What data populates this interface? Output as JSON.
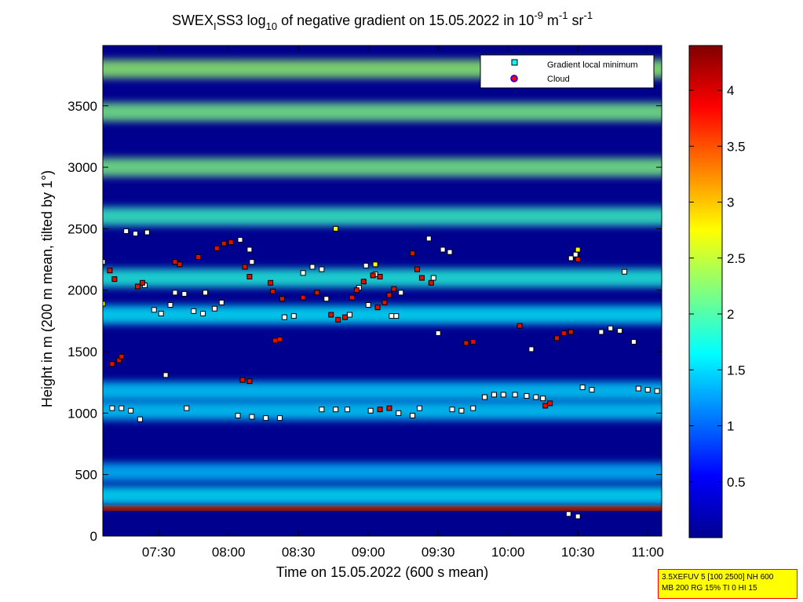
{
  "chart_data": [
    {
      "type": "heatmap",
      "title": {
        "part1": "SWEX",
        "sub1": "I",
        "part2": "SS3 log",
        "sub2": "10",
        "part3": " of negative gradient on 15.05.2022 in 10",
        "sup1": "-9",
        "part4": " m",
        "sup2": "-1",
        "part5": " sr",
        "sup3": "-1"
      },
      "xlabel": "Time on 15.05.2022 (600 s mean)",
      "ylabel": "Height in m (200 m mean, tilted by 1°)",
      "xlim_minutes": [
        426,
        666
      ],
      "xticks": [
        {
          "label": "07:30",
          "minutes": 450
        },
        {
          "label": "08:00",
          "minutes": 480
        },
        {
          "label": "08:30",
          "minutes": 510
        },
        {
          "label": "09:00",
          "minutes": 540
        },
        {
          "label": "09:30",
          "minutes": 570
        },
        {
          "label": "10:00",
          "minutes": 600
        },
        {
          "label": "10:30",
          "minutes": 630
        },
        {
          "label": "11:00",
          "minutes": 660
        }
      ],
      "ylim": [
        0,
        3990
      ],
      "yticks": [
        0,
        500,
        1000,
        1500,
        2000,
        2500,
        3000,
        3500
      ],
      "ytick_labels": [
        "0",
        "500",
        "1000",
        "1500",
        "2000",
        "2500",
        "3000",
        "3500"
      ],
      "colorbar": {
        "range": [
          0,
          4.4
        ],
        "ticks": [
          0.5,
          1,
          1.5,
          2,
          2.5,
          3,
          3.5,
          4
        ],
        "tick_labels": [
          "0.5",
          "1",
          "1.5",
          "2",
          "2.5",
          "3",
          "3.5",
          "4"
        ],
        "colormap": "jet"
      },
      "layers": [
        {
          "height": 230,
          "value": 4.3,
          "kind": "surface line"
        },
        {
          "height": 330,
          "value": 1.6
        },
        {
          "height": 520,
          "value": 1.4
        },
        {
          "height": 1020,
          "value": 1.5
        },
        {
          "height": 1180,
          "value": 1.5
        },
        {
          "height": 1800,
          "value": 1.6
        },
        {
          "height": 2100,
          "value": 1.8
        },
        {
          "height": 2600,
          "value": 1.9
        },
        {
          "height": 3000,
          "value": 2.2
        },
        {
          "height": 3450,
          "value": 2.2
        },
        {
          "height": 3800,
          "value": 2.3
        }
      ],
      "legend": {
        "position": "top-right",
        "entries": [
          {
            "label": "Gradient local minimum",
            "color": "#00ffff"
          },
          {
            "label": "Cloud",
            "color": "#ff0000"
          }
        ]
      },
      "gradient_minima": [
        {
          "t": 426,
          "h": 2230
        },
        {
          "t": 430,
          "h": 1040
        },
        {
          "t": 434,
          "h": 1040
        },
        {
          "t": 438,
          "h": 1020
        },
        {
          "t": 442,
          "h": 950
        },
        {
          "t": 436,
          "h": 2480
        },
        {
          "t": 440,
          "h": 2460
        },
        {
          "t": 445,
          "h": 2470
        },
        {
          "t": 444,
          "h": 2040
        },
        {
          "t": 448,
          "h": 1840
        },
        {
          "t": 451,
          "h": 1810
        },
        {
          "t": 455,
          "h": 1880
        },
        {
          "t": 457,
          "h": 1980
        },
        {
          "t": 461,
          "h": 1970
        },
        {
          "t": 453,
          "h": 1310
        },
        {
          "t": 462,
          "h": 1040
        },
        {
          "t": 465,
          "h": 1830
        },
        {
          "t": 469,
          "h": 1810
        },
        {
          "t": 474,
          "h": 1850
        },
        {
          "t": 477,
          "h": 1900
        },
        {
          "t": 470,
          "h": 1980
        },
        {
          "t": 485,
          "h": 2410
        },
        {
          "t": 489,
          "h": 2330
        },
        {
          "t": 490,
          "h": 2230
        },
        {
          "t": 484,
          "h": 980
        },
        {
          "t": 490,
          "h": 970
        },
        {
          "t": 496,
          "h": 960
        },
        {
          "t": 502,
          "h": 960
        },
        {
          "t": 504,
          "h": 1780
        },
        {
          "t": 508,
          "h": 1790
        },
        {
          "t": 512,
          "h": 2140
        },
        {
          "t": 516,
          "h": 2190
        },
        {
          "t": 520,
          "h": 2170
        },
        {
          "t": 522,
          "h": 1930
        },
        {
          "t": 520,
          "h": 1030
        },
        {
          "t": 526,
          "h": 1030
        },
        {
          "t": 531,
          "h": 1030
        },
        {
          "t": 532,
          "h": 1800
        },
        {
          "t": 536,
          "h": 2020
        },
        {
          "t": 539,
          "h": 2200
        },
        {
          "t": 543,
          "h": 2130
        },
        {
          "t": 540,
          "h": 1880
        },
        {
          "t": 541,
          "h": 1020
        },
        {
          "t": 550,
          "h": 1790
        },
        {
          "t": 552,
          "h": 1790
        },
        {
          "t": 554,
          "h": 1980
        },
        {
          "t": 553,
          "h": 1000
        },
        {
          "t": 559,
          "h": 980
        },
        {
          "t": 562,
          "h": 1040
        },
        {
          "t": 566,
          "h": 2420
        },
        {
          "t": 568,
          "h": 2100
        },
        {
          "t": 572,
          "h": 2330
        },
        {
          "t": 575,
          "h": 2310
        },
        {
          "t": 570,
          "h": 1650
        },
        {
          "t": 576,
          "h": 1030
        },
        {
          "t": 580,
          "h": 1020
        },
        {
          "t": 585,
          "h": 1040
        },
        {
          "t": 590,
          "h": 1130
        },
        {
          "t": 594,
          "h": 1150
        },
        {
          "t": 598,
          "h": 1150
        },
        {
          "t": 603,
          "h": 1150
        },
        {
          "t": 608,
          "h": 1140
        },
        {
          "t": 612,
          "h": 1130
        },
        {
          "t": 615,
          "h": 1120
        },
        {
          "t": 610,
          "h": 1520
        },
        {
          "t": 627,
          "h": 2260
        },
        {
          "t": 629,
          "h": 2290
        },
        {
          "t": 632,
          "h": 1210
        },
        {
          "t": 636,
          "h": 1190
        },
        {
          "t": 640,
          "h": 1660
        },
        {
          "t": 644,
          "h": 1690
        },
        {
          "t": 648,
          "h": 1670
        },
        {
          "t": 650,
          "h": 2150
        },
        {
          "t": 654,
          "h": 1580
        },
        {
          "t": 656,
          "h": 1200
        },
        {
          "t": 660,
          "h": 1190
        },
        {
          "t": 664,
          "h": 1180
        },
        {
          "t": 626,
          "h": 180
        },
        {
          "t": 630,
          "h": 160
        }
      ],
      "clouds": [
        {
          "t": 429,
          "h": 2160
        },
        {
          "t": 431,
          "h": 2090
        },
        {
          "t": 430,
          "h": 1400
        },
        {
          "t": 433,
          "h": 1430
        },
        {
          "t": 434,
          "h": 1460
        },
        {
          "t": 441,
          "h": 2030
        },
        {
          "t": 443,
          "h": 2060
        },
        {
          "t": 457,
          "h": 2230
        },
        {
          "t": 459,
          "h": 2210
        },
        {
          "t": 467,
          "h": 2270
        },
        {
          "t": 475,
          "h": 2340
        },
        {
          "t": 478,
          "h": 2380
        },
        {
          "t": 481,
          "h": 2390
        },
        {
          "t": 486,
          "h": 1270
        },
        {
          "t": 489,
          "h": 1260
        },
        {
          "t": 487,
          "h": 2190
        },
        {
          "t": 489,
          "h": 2110
        },
        {
          "t": 498,
          "h": 2060
        },
        {
          "t": 499,
          "h": 1990
        },
        {
          "t": 503,
          "h": 1930
        },
        {
          "t": 500,
          "h": 1590
        },
        {
          "t": 502,
          "h": 1600
        },
        {
          "t": 512,
          "h": 1940
        },
        {
          "t": 518,
          "h": 1980
        },
        {
          "t": 524,
          "h": 1800
        },
        {
          "t": 527,
          "h": 1760
        },
        {
          "t": 530,
          "h": 1780
        },
        {
          "t": 533,
          "h": 1940
        },
        {
          "t": 535,
          "h": 2000
        },
        {
          "t": 538,
          "h": 2070
        },
        {
          "t": 542,
          "h": 2120
        },
        {
          "t": 545,
          "h": 2110
        },
        {
          "t": 544,
          "h": 1860
        },
        {
          "t": 547,
          "h": 1900
        },
        {
          "t": 549,
          "h": 1960
        },
        {
          "t": 551,
          "h": 2010
        },
        {
          "t": 545,
          "h": 1030
        },
        {
          "t": 549,
          "h": 1040
        },
        {
          "t": 559,
          "h": 2300
        },
        {
          "t": 561,
          "h": 2170
        },
        {
          "t": 563,
          "h": 2100
        },
        {
          "t": 567,
          "h": 2060
        },
        {
          "t": 582,
          "h": 1570
        },
        {
          "t": 585,
          "h": 1580
        },
        {
          "t": 605,
          "h": 1710
        },
        {
          "t": 616,
          "h": 1060
        },
        {
          "t": 618,
          "h": 1080
        },
        {
          "t": 621,
          "h": 1610
        },
        {
          "t": 624,
          "h": 1650
        },
        {
          "t": 627,
          "h": 1660
        },
        {
          "t": 630,
          "h": 2250
        }
      ],
      "yellow_marks": [
        {
          "t": 426,
          "h": 1890
        },
        {
          "t": 526,
          "h": 2500
        },
        {
          "t": 543,
          "h": 2210
        },
        {
          "t": 630,
          "h": 2330
        }
      ]
    }
  ],
  "info_box": {
    "line1": "3.5XEFUV 5 [100 2500] NH 600",
    "line2": "MB 200 RG 15% TI 0 HI 15"
  }
}
